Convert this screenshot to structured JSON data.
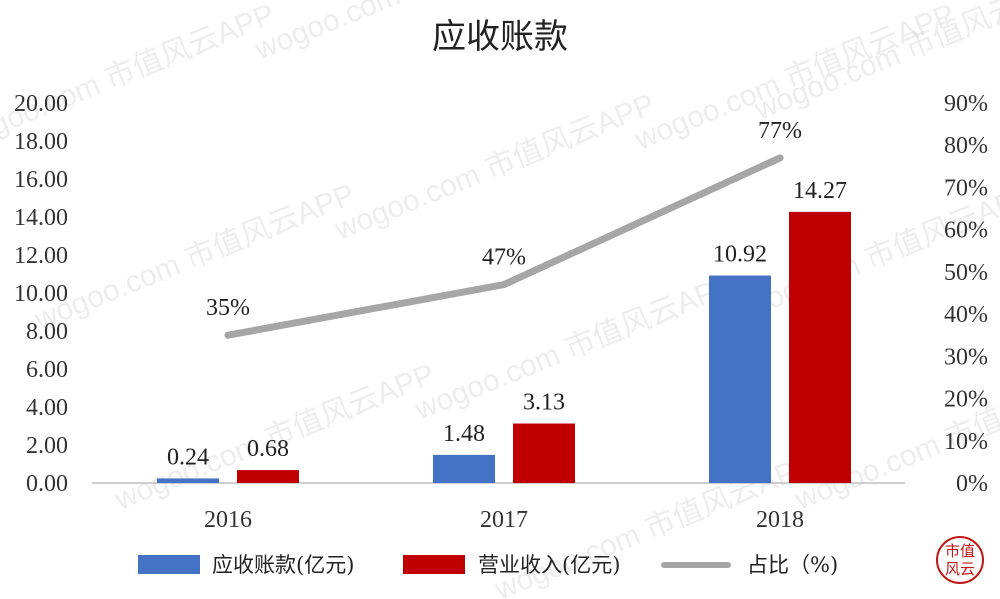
{
  "watermark": "wogoo.com 市值风云APP",
  "chart_data": {
    "type": "bar",
    "title": "应收账款",
    "categories": [
      "2016",
      "2017",
      "2018"
    ],
    "series": [
      {
        "name": "应收账款(亿元)",
        "type": "bar",
        "axis": "left",
        "color": "#4472C4",
        "values": [
          0.24,
          1.48,
          10.92
        ]
      },
      {
        "name": "营业收入(亿元)",
        "type": "bar",
        "axis": "left",
        "color": "#C00000",
        "values": [
          0.68,
          3.13,
          14.27
        ]
      },
      {
        "name": "占比（%)",
        "type": "line",
        "axis": "right",
        "color": "#A6A6A6",
        "values": [
          35,
          47,
          77
        ],
        "labels": [
          "35%",
          "47%",
          "77%"
        ]
      }
    ],
    "y_left": {
      "min": 0,
      "max": 20,
      "step": 2,
      "ticks": [
        "0.00",
        "2.00",
        "4.00",
        "6.00",
        "8.00",
        "10.00",
        "12.00",
        "14.00",
        "16.00",
        "18.00",
        "20.00"
      ]
    },
    "y_right": {
      "min": 0,
      "max": 90,
      "step": 10,
      "ticks": [
        "0%",
        "10%",
        "20%",
        "30%",
        "40%",
        "50%",
        "60%",
        "70%",
        "80%",
        "90%"
      ]
    },
    "bar_labels": [
      [
        "0.24",
        "1.48",
        "10.92"
      ],
      [
        "0.68",
        "3.13",
        "14.27"
      ]
    ],
    "grid": false,
    "legend_position": "bottom"
  },
  "logo": {
    "line1": "市值",
    "line2": "风云"
  }
}
